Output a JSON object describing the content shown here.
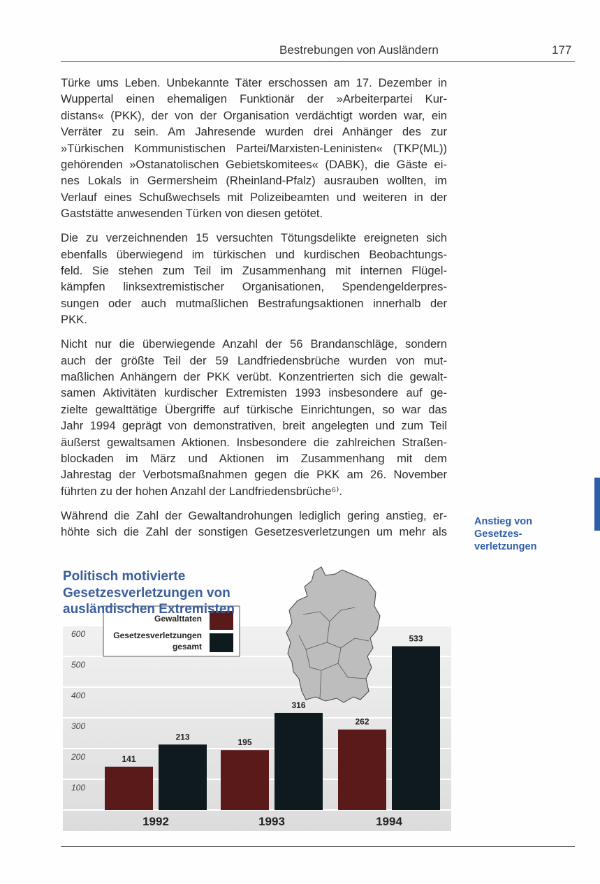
{
  "header": {
    "running_title": "Bestrebungen von Ausländern",
    "page_number": "177"
  },
  "body": {
    "paragraphs": [
      [
        "Türke ums Leben. Unbekannte Täter erschossen am 17. Dezember in",
        "Wuppertal einen ehemaligen Funktionär der »Arbeiterpartei Kur-",
        "distans« (PKK), der von der Organisation verdächtigt worden war, ein",
        "Verräter zu sein. Am Jahresende wurden drei Anhänger des zur",
        "»Türkischen Kommunistischen Partei/Marxisten-Leninisten« (TKP(ML))",
        "gehörenden »Ostanatolischen Gebietskomitees« (DABK), die Gäste ei-",
        "nes Lokals in Germersheim (Rheinland-Pfalz) ausrauben wollten, im",
        "Verlauf eines Schußwechsels mit Polizeibeamten und weiteren in der",
        "Gaststätte anwesenden Türken von diesen getötet."
      ],
      [
        "Die zu verzeichnenden 15 versuchten Tötungsdelikte ereigneten sich",
        "ebenfalls überwiegend im türkischen und kurdischen Beobachtungs-",
        "feld. Sie stehen zum Teil im Zusammenhang mit internen Flügel-",
        "kämpfen linksextremistischer Organisationen, Spendengelderpres-",
        "sungen oder auch mutmaßlichen Bestrafungsaktionen innerhalb der",
        "PKK."
      ],
      [
        "Nicht nur die überwiegende Anzahl der 56 Brandanschläge, sondern",
        "auch der größte Teil der 59 Landfriedensbrüche wurden von mut-",
        "maßlichen Anhängern der PKK verübt. Konzentrierten sich die gewalt-",
        "samen Aktivitäten kurdischer Extremisten 1993 insbesondere auf ge-",
        "zielte gewalttätige Übergriffe auf türkische Einrichtungen, so war das",
        "Jahr 1994 geprägt von demonstrativen, breit angelegten und zum Teil",
        "äußerst gewaltsamen Aktionen. Insbesondere die zahlreichen Straßen-",
        "blockaden im März und Aktionen im Zusammenhang mit dem",
        "Jahrestag der Verbotsmaßnahmen gegen die PKK am 26. November",
        "führten zu der hohen Anzahl der Landfriedensbrüche⁶⁾."
      ],
      [
        "Während die Zahl der Gewaltandrohungen lediglich gering anstieg, er-",
        "höhte sich die Zahl der sonstigen Gesetzesverletzungen um mehr als"
      ]
    ]
  },
  "margin_note": [
    "Anstieg von",
    "Gesetzes-",
    "verletzungen"
  ],
  "colors": {
    "accent": "#2e5ea8",
    "gewalttaten": "#5a1a1a",
    "gesamt": "#0f1a1f"
  },
  "chart_data": {
    "type": "bar",
    "title": [
      "Politisch motivierte",
      "Gesetzesverletzungen von",
      "ausländischen Extremisten"
    ],
    "categories": [
      "1992",
      "1993",
      "1994"
    ],
    "series": [
      {
        "name": "Gewalttaten",
        "values": [
          141,
          195,
          262
        ]
      },
      {
        "name": "Gesetzesverletzungen gesamt",
        "values": [
          213,
          316,
          533
        ]
      }
    ],
    "legend_lines": [
      [
        "Gewalttaten"
      ],
      [
        "Gesetzesverletzungen",
        "gesamt"
      ]
    ],
    "yticks": [
      "100",
      "200",
      "300",
      "400",
      "500",
      "600"
    ],
    "ylim": [
      0,
      600
    ],
    "grid": true,
    "legend_position": "top-left",
    "decoration": "map-of-germany"
  }
}
